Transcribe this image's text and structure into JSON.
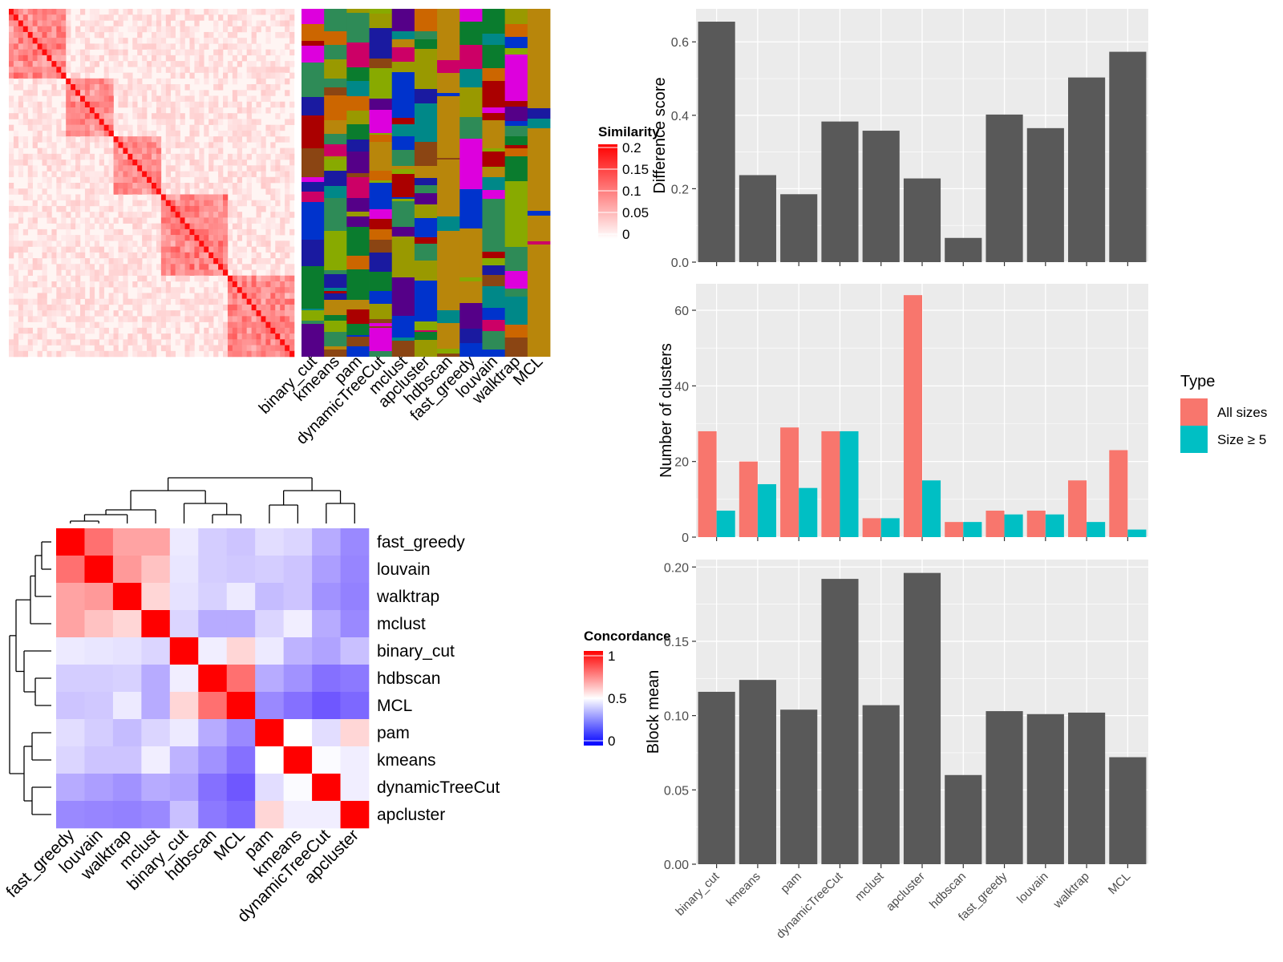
{
  "methods": [
    "binary_cut",
    "kmeans",
    "pam",
    "dynamicTreeCut",
    "mclust",
    "apcluster",
    "hdbscan",
    "fast_greedy",
    "louvain",
    "walktrap",
    "MCL"
  ],
  "colors": {
    "bar": "#595959",
    "panel_bg": "#ebebeb",
    "grid": "#ffffff",
    "all_sizes": "#f8766d",
    "size_ge_5": "#00bfc4",
    "heat_high": "#ff0000",
    "heat_mid": "#ffffff",
    "heat_low": "#0000ff"
  },
  "similarity_heatmap": {
    "legend_title": "Similarity",
    "legend_ticks": [
      "0.2",
      "0.15",
      "0.1",
      "0.05",
      "0"
    ]
  },
  "cluster_matrix": {
    "palette": [
      "#b8860b",
      "#aa0000",
      "#0a7c2e",
      "#dd00dd",
      "#1a1aa0",
      "#2e8b57",
      "#8b4513",
      "#0033cc",
      "#88aa00",
      "#cc6600",
      "#008888",
      "#550088",
      "#999900",
      "#cc0066"
    ]
  },
  "concordance_heatmap": {
    "legend_title": "Concordance",
    "legend_ticks": [
      "1",
      "0.5",
      "0"
    ],
    "order": [
      "fast_greedy",
      "louvain",
      "walktrap",
      "mclust",
      "binary_cut",
      "hdbscan",
      "MCL",
      "pam",
      "kmeans",
      "dynamicTreeCut",
      "apcluster"
    ],
    "matrix": [
      [
        1.0,
        0.78,
        0.68,
        0.68,
        0.45,
        0.38,
        0.36,
        0.42,
        0.4,
        0.3,
        0.22
      ],
      [
        0.78,
        1.0,
        0.7,
        0.62,
        0.44,
        0.38,
        0.37,
        0.38,
        0.36,
        0.27,
        0.21
      ],
      [
        0.68,
        0.7,
        1.0,
        0.58,
        0.43,
        0.39,
        0.45,
        0.34,
        0.36,
        0.24,
        0.2
      ],
      [
        0.68,
        0.62,
        0.58,
        1.0,
        0.4,
        0.3,
        0.3,
        0.4,
        0.46,
        0.3,
        0.22
      ],
      [
        0.45,
        0.44,
        0.43,
        0.4,
        1.0,
        0.46,
        0.58,
        0.45,
        0.32,
        0.28,
        0.35
      ],
      [
        0.38,
        0.38,
        0.39,
        0.3,
        0.46,
        1.0,
        0.78,
        0.3,
        0.24,
        0.16,
        0.18
      ],
      [
        0.36,
        0.37,
        0.45,
        0.3,
        0.58,
        0.78,
        1.0,
        0.22,
        0.16,
        0.1,
        0.14
      ],
      [
        0.42,
        0.38,
        0.34,
        0.4,
        0.45,
        0.3,
        0.22,
        1.0,
        0.5,
        0.42,
        0.58
      ],
      [
        0.4,
        0.36,
        0.36,
        0.46,
        0.32,
        0.24,
        0.16,
        0.5,
        1.0,
        0.49,
        0.46
      ],
      [
        0.3,
        0.27,
        0.24,
        0.3,
        0.28,
        0.16,
        0.1,
        0.42,
        0.49,
        1.0,
        0.46
      ],
      [
        0.22,
        0.21,
        0.2,
        0.22,
        0.35,
        0.18,
        0.14,
        0.58,
        0.46,
        0.46,
        1.0
      ]
    ]
  },
  "chart_data": [
    {
      "type": "bar",
      "categories": [
        "binary_cut",
        "kmeans",
        "pam",
        "dynamicTreeCut",
        "mclust",
        "apcluster",
        "hdbscan",
        "fast_greedy",
        "louvain",
        "walktrap",
        "MCL"
      ],
      "values": [
        0.655,
        0.237,
        0.185,
        0.383,
        0.358,
        0.228,
        0.066,
        0.402,
        0.365,
        0.503,
        0.573
      ],
      "title": "",
      "xlabel": "",
      "ylabel": "Difference score",
      "ylim": [
        0,
        0.69
      ],
      "yticks": [
        "0.0",
        "0.2",
        "0.4",
        "0.6"
      ]
    },
    {
      "type": "bar",
      "categories": [
        "binary_cut",
        "kmeans",
        "pam",
        "dynamicTreeCut",
        "mclust",
        "apcluster",
        "hdbscan",
        "fast_greedy",
        "louvain",
        "walktrap",
        "MCL"
      ],
      "series": [
        {
          "name": "All sizes",
          "values": [
            28,
            20,
            29,
            28,
            5,
            64,
            4,
            7,
            7,
            15,
            23
          ]
        },
        {
          "name": "Size ≥ 5",
          "values": [
            7,
            14,
            13,
            28,
            5,
            15,
            4,
            6,
            6,
            4,
            2
          ]
        }
      ],
      "title": "",
      "xlabel": "",
      "ylabel": "Number of clusters",
      "ylim": [
        0,
        67
      ],
      "yticks": [
        "0",
        "20",
        "40",
        "60"
      ],
      "legend_title": "Type",
      "legend_position": "right"
    },
    {
      "type": "bar",
      "categories": [
        "binary_cut",
        "kmeans",
        "pam",
        "dynamicTreeCut",
        "mclust",
        "apcluster",
        "hdbscan",
        "fast_greedy",
        "louvain",
        "walktrap",
        "MCL"
      ],
      "values": [
        0.116,
        0.124,
        0.104,
        0.192,
        0.107,
        0.196,
        0.06,
        0.103,
        0.101,
        0.102,
        0.072
      ],
      "title": "",
      "xlabel": "",
      "ylabel": "Block mean",
      "ylim": [
        0,
        0.205
      ],
      "yticks": [
        "0.00",
        "0.05",
        "0.10",
        "0.15",
        "0.20"
      ]
    }
  ]
}
